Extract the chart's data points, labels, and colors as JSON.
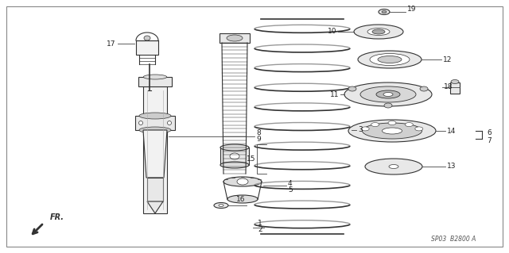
{
  "background_color": "#ffffff",
  "diagram_color": "#333333",
  "line_color": "#444444",
  "label_color": "#222222",
  "fill_light": "#e8e8e8",
  "fill_lighter": "#f2f2f2",
  "diagram_code": "SP03  B2800 A",
  "fr_label": "FR."
}
